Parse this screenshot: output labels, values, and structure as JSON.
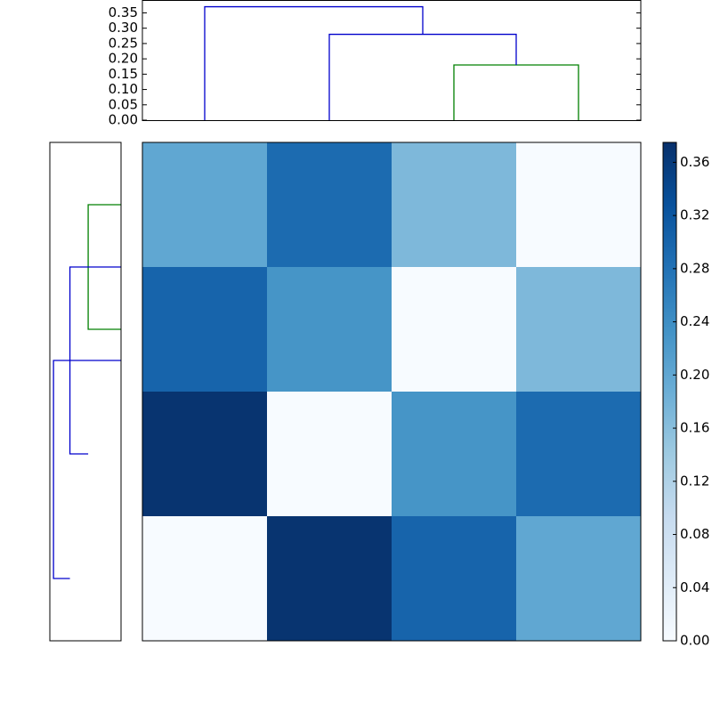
{
  "chart_data": {
    "type": "clustermap",
    "matrix": [
      [
        0.2,
        0.29,
        0.17,
        0
      ],
      [
        0.3,
        0.23,
        0,
        0.17
      ],
      [
        0.37,
        0,
        0.23,
        0.29
      ],
      [
        0,
        0.37,
        0.3,
        0.2
      ]
    ],
    "clim": [
      0,
      0.375
    ],
    "colormap": [
      "#f7fbff",
      "#deebf7",
      "#c6dbef",
      "#9ecae1",
      "#6baed6",
      "#4292c6",
      "#2171b5",
      "#08519c",
      "#08306b"
    ],
    "colorbar_ticks": [
      {
        "value": 0,
        "label": "0.00"
      },
      {
        "value": 0.04,
        "label": "0.04"
      },
      {
        "value": 0.08,
        "label": "0.08"
      },
      {
        "value": 0.12,
        "label": "0.12"
      },
      {
        "value": 0.16,
        "label": "0.16"
      },
      {
        "value": 0.2,
        "label": "0.20"
      },
      {
        "value": 0.24,
        "label": "0.24"
      },
      {
        "value": 0.28,
        "label": "0.28"
      },
      {
        "value": 0.32,
        "label": "0.32"
      },
      {
        "value": 0.36,
        "label": "0.36"
      }
    ],
    "top_dendrogram": {
      "xlim": [
        0,
        40
      ],
      "ylim": [
        0,
        0.392
      ],
      "yticks": [
        {
          "value": 0,
          "label": "0.00"
        },
        0.05,
        {
          "value": 0.1,
          "label": "0.10"
        },
        0.15,
        {
          "value": 0.2,
          "label": "0.20"
        },
        0.25,
        {
          "value": 0.3,
          "label": "0.30"
        },
        0.35
      ],
      "links": [
        {
          "x": [
            25,
            25,
            35,
            35
          ],
          "y": [
            0,
            0.18,
            0.18,
            0
          ],
          "color": "#008000"
        },
        {
          "x": [
            15,
            15,
            30,
            30
          ],
          "y": [
            0,
            0.28,
            0.28,
            0.18
          ],
          "color": "#0000cc"
        },
        {
          "x": [
            5,
            5,
            22.5,
            22.5
          ],
          "y": [
            0,
            0.37,
            0.37,
            0.28
          ],
          "color": "#0000cc"
        }
      ]
    },
    "left_dendrogram": {
      "leaflim": [
        0,
        40
      ],
      "distlim": [
        0,
        0.39
      ],
      "links": [
        {
          "x": [
            5,
            5,
            15,
            15
          ],
          "y": [
            0,
            0.18,
            0.18,
            0
          ],
          "color": "#008000"
        },
        {
          "x": [
            10,
            10,
            25,
            25
          ],
          "y": [
            0,
            0.28,
            0.28,
            0.18
          ],
          "color": "#0000cc"
        },
        {
          "x": [
            17.5,
            17.5,
            35,
            35
          ],
          "y": [
            0,
            0.37,
            0.37,
            0.28
          ],
          "color": "#0000cc"
        }
      ]
    }
  }
}
